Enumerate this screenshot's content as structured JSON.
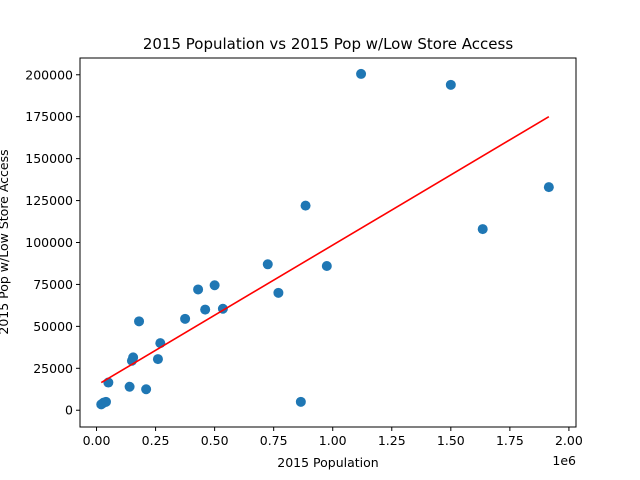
{
  "chart_data": {
    "type": "scatter",
    "title": "2015 Population vs 2015 Pop w/Low Store Access",
    "xlabel": "2015 Population",
    "ylabel": "2015 Pop w/Low Store Access",
    "x_offset_label": "1e6",
    "xlim": [
      -0.07,
      2.03
    ],
    "ylim": [
      -10000,
      210000
    ],
    "x_ticks": [
      0.0,
      0.25,
      0.5,
      0.75,
      1.0,
      1.25,
      1.5,
      1.75,
      2.0
    ],
    "x_tick_labels": [
      "0.00",
      "0.25",
      "0.50",
      "0.75",
      "1.00",
      "1.25",
      "1.50",
      "1.75",
      "2.00"
    ],
    "y_ticks": [
      0,
      25000,
      50000,
      75000,
      100000,
      125000,
      150000,
      175000,
      200000
    ],
    "y_tick_labels": [
      "0",
      "25000",
      "50000",
      "75000",
      "100000",
      "125000",
      "150000",
      "175000",
      "200000"
    ],
    "grid": false,
    "points": [
      {
        "x": 0.02,
        "y": 3500
      },
      {
        "x": 0.03,
        "y": 4500
      },
      {
        "x": 0.04,
        "y": 5000
      },
      {
        "x": 0.05,
        "y": 16500
      },
      {
        "x": 0.14,
        "y": 14000
      },
      {
        "x": 0.15,
        "y": 29500
      },
      {
        "x": 0.155,
        "y": 31500
      },
      {
        "x": 0.18,
        "y": 53000
      },
      {
        "x": 0.21,
        "y": 12500
      },
      {
        "x": 0.26,
        "y": 30500
      },
      {
        "x": 0.27,
        "y": 40000
      },
      {
        "x": 0.375,
        "y": 54500
      },
      {
        "x": 0.43,
        "y": 72000
      },
      {
        "x": 0.46,
        "y": 60000
      },
      {
        "x": 0.5,
        "y": 74500
      },
      {
        "x": 0.535,
        "y": 60500
      },
      {
        "x": 0.725,
        "y": 87000
      },
      {
        "x": 0.77,
        "y": 70000
      },
      {
        "x": 0.865,
        "y": 5000
      },
      {
        "x": 0.885,
        "y": 122000
      },
      {
        "x": 0.975,
        "y": 86000
      },
      {
        "x": 1.12,
        "y": 200500
      },
      {
        "x": 1.5,
        "y": 194000
      },
      {
        "x": 1.635,
        "y": 108000
      },
      {
        "x": 1.915,
        "y": 133000
      }
    ],
    "trendline": {
      "x": [
        0.02,
        1.915
      ],
      "y": [
        16500,
        175000
      ]
    },
    "colors": {
      "points": "#1f77b4",
      "trendline": "#ff0000"
    }
  }
}
